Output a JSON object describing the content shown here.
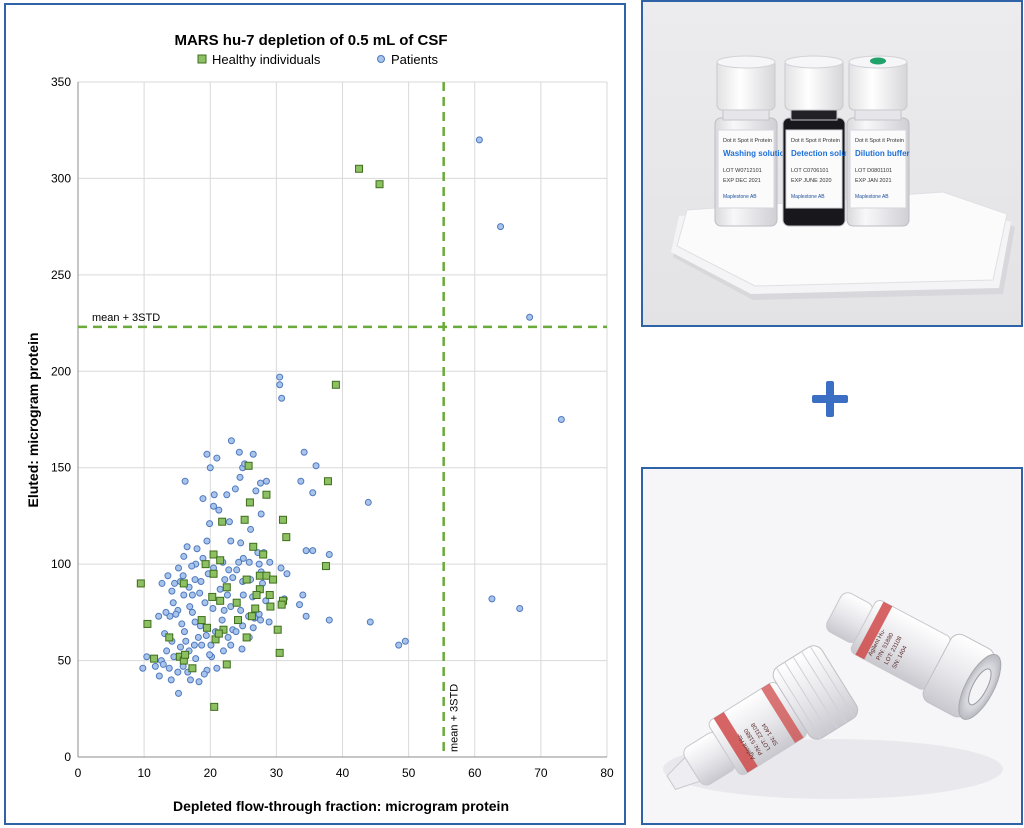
{
  "chart_data": {
    "type": "scatter",
    "title": "MARS hu-7 depletion of  0.5 mL of CSF",
    "xlabel": "Depleted flow-through fraction:  microgram protein",
    "ylabel": "Eluted:  microgram protein",
    "xlim": [
      0,
      80
    ],
    "ylim": [
      0,
      350
    ],
    "x_ticks": [
      0,
      10,
      20,
      30,
      40,
      50,
      60,
      70,
      80
    ],
    "y_ticks": [
      0,
      50,
      100,
      150,
      200,
      250,
      300,
      350
    ],
    "grid": true,
    "legend_position": "top",
    "threshold_lines": [
      {
        "label": "mean + 3STD",
        "axis": "y",
        "value": 223,
        "color": "#6aaa38"
      },
      {
        "label": "mean + 3STD",
        "axis": "x",
        "value": 55.3,
        "color": "#6aaa38"
      }
    ],
    "series": [
      {
        "name": "Healthy individuals",
        "marker": "square",
        "color": "#8cc063",
        "edge_color": "#3f6e1c",
        "points": [
          [
            42.5,
            305
          ],
          [
            45.6,
            297
          ],
          [
            39,
            193
          ],
          [
            25.8,
            151
          ],
          [
            37.8,
            143
          ],
          [
            28.5,
            136
          ],
          [
            31,
            123
          ],
          [
            25.2,
            123
          ],
          [
            21.8,
            122
          ],
          [
            26,
            132
          ],
          [
            31.5,
            114
          ],
          [
            26.5,
            109
          ],
          [
            20.5,
            105
          ],
          [
            21.5,
            102
          ],
          [
            28,
            105
          ],
          [
            19.3,
            100
          ],
          [
            25.5,
            92
          ],
          [
            27.5,
            94
          ],
          [
            28.5,
            94
          ],
          [
            29.5,
            92
          ],
          [
            37.5,
            99
          ],
          [
            27.5,
            87
          ],
          [
            27,
            84
          ],
          [
            29,
            84
          ],
          [
            21.5,
            81
          ],
          [
            24,
            80
          ],
          [
            31,
            81
          ],
          [
            30.8,
            79
          ],
          [
            26.8,
            77
          ],
          [
            29.1,
            78
          ],
          [
            24.2,
            71
          ],
          [
            26.3,
            73
          ],
          [
            9.5,
            90
          ],
          [
            16,
            90
          ],
          [
            20.5,
            95
          ],
          [
            22.5,
            88
          ],
          [
            20.3,
            83
          ],
          [
            10.5,
            69
          ],
          [
            19.5,
            67
          ],
          [
            20.8,
            61
          ],
          [
            22,
            66
          ],
          [
            30.2,
            66
          ],
          [
            13.8,
            62
          ],
          [
            15.4,
            52
          ],
          [
            16,
            50
          ],
          [
            11.5,
            51
          ],
          [
            22.5,
            48
          ],
          [
            17.3,
            46
          ],
          [
            30.5,
            54
          ],
          [
            20.6,
            26
          ],
          [
            18.7,
            71
          ],
          [
            25.5,
            62
          ],
          [
            21.3,
            64
          ],
          [
            16.2,
            53
          ]
        ]
      },
      {
        "name": "Patients",
        "marker": "circle",
        "color": "#a9c4eb",
        "edge_color": "#4f79be",
        "points": [
          [
            60.7,
            320
          ],
          [
            63.9,
            275
          ],
          [
            68.3,
            228
          ],
          [
            73.1,
            175
          ],
          [
            62.6,
            82
          ],
          [
            66.8,
            77
          ],
          [
            30.5,
            197
          ],
          [
            30.5,
            193
          ],
          [
            30.8,
            186
          ],
          [
            43.9,
            132
          ],
          [
            44.2,
            70
          ],
          [
            48.5,
            58
          ],
          [
            49.5,
            60
          ],
          [
            38,
            105
          ],
          [
            38,
            71
          ],
          [
            34.2,
            158
          ],
          [
            36,
            151
          ],
          [
            35.5,
            137
          ],
          [
            34.5,
            107
          ],
          [
            35.5,
            107
          ],
          [
            33.7,
            143
          ],
          [
            34,
            84
          ],
          [
            33.5,
            79
          ],
          [
            34.5,
            73
          ],
          [
            31.6,
            95
          ],
          [
            30.7,
            98
          ],
          [
            31.2,
            82
          ],
          [
            28.5,
            143
          ],
          [
            27.6,
            142
          ],
          [
            26.9,
            138
          ],
          [
            27.7,
            126
          ],
          [
            27.2,
            106
          ],
          [
            28.1,
            106
          ],
          [
            26.1,
            118
          ],
          [
            23.2,
            164
          ],
          [
            21,
            155
          ],
          [
            19.5,
            157
          ],
          [
            20,
            150
          ],
          [
            24.4,
            158
          ],
          [
            26.5,
            157
          ],
          [
            24.5,
            145
          ],
          [
            24.9,
            150
          ],
          [
            25.2,
            152
          ],
          [
            23.8,
            139
          ],
          [
            22.5,
            136
          ],
          [
            20.6,
            136
          ],
          [
            18.9,
            134
          ],
          [
            16.2,
            143
          ],
          [
            20.5,
            130
          ],
          [
            21.3,
            128
          ],
          [
            19.9,
            121
          ],
          [
            22.9,
            122
          ],
          [
            23.1,
            112
          ],
          [
            24.6,
            111
          ],
          [
            25,
            103
          ],
          [
            24.3,
            101
          ],
          [
            25.9,
            101
          ],
          [
            24,
            97
          ],
          [
            26.1,
            92
          ],
          [
            27.7,
            96
          ],
          [
            23.4,
            93
          ],
          [
            24.9,
            91
          ],
          [
            22.2,
            92
          ],
          [
            20.5,
            98
          ],
          [
            19.7,
            95
          ],
          [
            17.8,
            100
          ],
          [
            16.5,
            109
          ],
          [
            15.2,
            98
          ],
          [
            15.5,
            91
          ],
          [
            16.8,
            88
          ],
          [
            18.6,
            91
          ],
          [
            17.3,
            84
          ],
          [
            18.4,
            85
          ],
          [
            19.2,
            80
          ],
          [
            20.4,
            77
          ],
          [
            22.6,
            84
          ],
          [
            22.1,
            76
          ],
          [
            23.1,
            78
          ],
          [
            25,
            84
          ],
          [
            26.4,
            83
          ],
          [
            24.6,
            76
          ],
          [
            25.8,
            73
          ],
          [
            27.4,
            74
          ],
          [
            28.9,
            70
          ],
          [
            21.5,
            87
          ],
          [
            21.8,
            71
          ],
          [
            22.7,
            62
          ],
          [
            23.4,
            66
          ],
          [
            24.8,
            56
          ],
          [
            25.9,
            62
          ],
          [
            26.5,
            67
          ],
          [
            28.4,
            81
          ],
          [
            16,
            84
          ],
          [
            16.9,
            78
          ],
          [
            15.1,
            76
          ],
          [
            14.4,
            80
          ],
          [
            13.9,
            73
          ],
          [
            12.2,
            73
          ],
          [
            13.3,
            75
          ],
          [
            14.8,
            74
          ],
          [
            15.7,
            69
          ],
          [
            16.1,
            65
          ],
          [
            17.7,
            70
          ],
          [
            17.3,
            75
          ],
          [
            18.5,
            68
          ],
          [
            19.4,
            63
          ],
          [
            20.1,
            58
          ],
          [
            20.8,
            65
          ],
          [
            18.2,
            62
          ],
          [
            17.6,
            58
          ],
          [
            16.8,
            55
          ],
          [
            15.5,
            57
          ],
          [
            14.2,
            60
          ],
          [
            13.4,
            55
          ],
          [
            12.6,
            50
          ],
          [
            11.7,
            47
          ],
          [
            10.4,
            52
          ],
          [
            9.8,
            46
          ],
          [
            12.9,
            48
          ],
          [
            13.8,
            46
          ],
          [
            15.1,
            44
          ],
          [
            15.9,
            47
          ],
          [
            16.6,
            44
          ],
          [
            14.5,
            52
          ],
          [
            12.3,
            42
          ],
          [
            14.1,
            40
          ],
          [
            15.2,
            33
          ],
          [
            17,
            40
          ],
          [
            18.3,
            39
          ],
          [
            19.5,
            45
          ],
          [
            20.2,
            52
          ],
          [
            21,
            46
          ],
          [
            22,
            55
          ],
          [
            23.1,
            58
          ],
          [
            23.9,
            65
          ],
          [
            24.9,
            68
          ],
          [
            26.7,
            72
          ],
          [
            27.6,
            71
          ],
          [
            18.7,
            58
          ],
          [
            19.9,
            53
          ],
          [
            16.3,
            60
          ],
          [
            17.8,
            51
          ],
          [
            19.1,
            43
          ],
          [
            13.1,
            64
          ],
          [
            14.6,
            90
          ],
          [
            17.7,
            92
          ],
          [
            18.9,
            103
          ],
          [
            19.5,
            112
          ],
          [
            18,
            108
          ],
          [
            16,
            104
          ],
          [
            17.2,
            99
          ],
          [
            15.9,
            94
          ],
          [
            13.6,
            94
          ],
          [
            12.7,
            90
          ],
          [
            14.2,
            86
          ],
          [
            21.9,
            101
          ],
          [
            22.8,
            97
          ],
          [
            27.4,
            100
          ],
          [
            27.9,
            90
          ],
          [
            29,
            101
          ]
        ]
      }
    ]
  },
  "photos": {
    "top": {
      "bottles": [
        {
          "line1": "Dot it Spot it Protein",
          "line2": "Washing solution",
          "line3": "LOT W0712101",
          "line4": "EXP DEC 2021",
          "line5": "Maplestone AB",
          "cap": "#fcfcfc",
          "body": "#f4f4f6",
          "liquid": "#f6f6f8"
        },
        {
          "line1": "Dot it Spot it Protein",
          "line2": "Detection solution",
          "line3": "LOT C0706101",
          "line4": "EXP JUNE 2020",
          "line5": "Maplestone AB",
          "cap": "#fcfcfc",
          "body": "#1b1b1f",
          "liquid": "#1b1b1f"
        },
        {
          "line1": "Dot it Spot it Protein",
          "line2": "Dilution buffer",
          "line3": "LOT D0801101",
          "line4": "EXP JAN 2021",
          "line5": "Maplestone AB",
          "cap": "#fcfcfc",
          "body": "#f2f2f4",
          "liquid": "#f2f2f4"
        }
      ]
    },
    "bottom": {
      "labels": [
        "Agilent Hu-",
        "P/N: 51880",
        "LOT: 23108",
        "SN: 1404"
      ]
    }
  }
}
